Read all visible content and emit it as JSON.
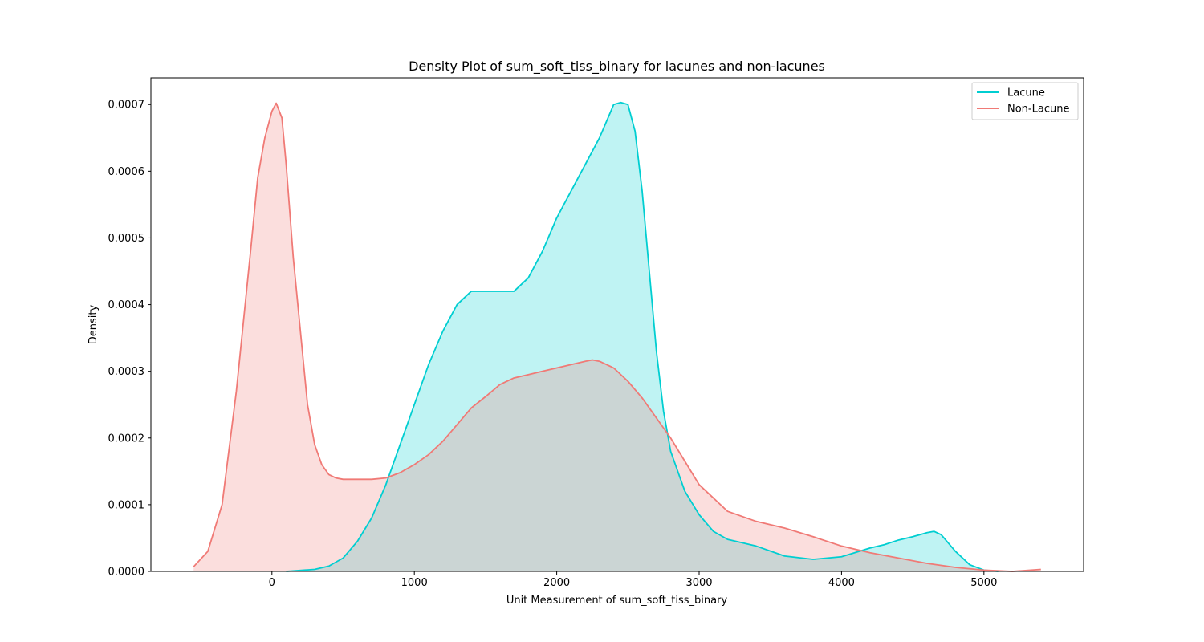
{
  "chart_data": {
    "type": "area",
    "title": "Density Plot of sum_soft_tiss_binary for lacunes and non-lacunes",
    "xlabel": "Unit Measurement of sum_soft_tiss_binary",
    "ylabel": "Density",
    "xlim": [
      -850,
      5700
    ],
    "ylim": [
      0,
      0.00074
    ],
    "xticks": [
      0,
      1000,
      2000,
      3000,
      4000,
      5000
    ],
    "xtick_labels": [
      "0",
      "1000",
      "2000",
      "3000",
      "4000",
      "5000"
    ],
    "yticks": [
      0,
      0.0001,
      0.0002,
      0.0003,
      0.0004,
      0.0005,
      0.0006,
      0.0007
    ],
    "ytick_labels": [
      "0.0000",
      "0.0001",
      "0.0002",
      "0.0003",
      "0.0004",
      "0.0005",
      "0.0006",
      "0.0007"
    ],
    "grid": false,
    "legend_position": "top-right",
    "series": [
      {
        "name": "Lacune",
        "color": "#00ced1",
        "fill_opacity": 0.25,
        "x": [
          100,
          300,
          400,
          500,
          600,
          700,
          800,
          900,
          1000,
          1100,
          1200,
          1300,
          1400,
          1500,
          1600,
          1700,
          1800,
          1900,
          2000,
          2100,
          2200,
          2300,
          2400,
          2450,
          2500,
          2550,
          2600,
          2650,
          2700,
          2750,
          2800,
          2900,
          3000,
          3100,
          3200,
          3400,
          3600,
          3800,
          4000,
          4200,
          4300,
          4400,
          4500,
          4600,
          4650,
          4700,
          4800,
          4900,
          5000,
          5100
        ],
        "y": [
          0.0,
          3e-06,
          8e-06,
          2e-05,
          4.5e-05,
          8e-05,
          0.00013,
          0.00019,
          0.00025,
          0.00031,
          0.00036,
          0.0004,
          0.00042,
          0.00042,
          0.00042,
          0.00042,
          0.00044,
          0.00048,
          0.00053,
          0.00057,
          0.00061,
          0.00065,
          0.0007,
          0.000703,
          0.0007,
          0.00066,
          0.00057,
          0.00045,
          0.00033,
          0.00024,
          0.00018,
          0.00012,
          8.5e-05,
          6e-05,
          4.8e-05,
          3.8e-05,
          2.3e-05,
          1.8e-05,
          2.2e-05,
          3.5e-05,
          4e-05,
          4.7e-05,
          5.2e-05,
          5.8e-05,
          6e-05,
          5.5e-05,
          3e-05,
          1e-05,
          2e-06,
          0.0
        ]
      },
      {
        "name": "Non-Lacune",
        "color": "#f07a76",
        "fill_opacity": 0.25,
        "x": [
          -550,
          -450,
          -350,
          -250,
          -150,
          -100,
          -50,
          0,
          30,
          70,
          100,
          150,
          200,
          250,
          300,
          350,
          400,
          450,
          500,
          550,
          600,
          700,
          800,
          900,
          1000,
          1100,
          1200,
          1300,
          1400,
          1500,
          1600,
          1700,
          1800,
          1900,
          2000,
          2100,
          2200,
          2250,
          2300,
          2400,
          2500,
          2600,
          2700,
          2800,
          2900,
          3000,
          3200,
          3400,
          3600,
          3800,
          4000,
          4200,
          4400,
          4600,
          4800,
          5000,
          5200,
          5400
        ],
        "y": [
          7e-06,
          3e-05,
          0.0001,
          0.00027,
          0.00048,
          0.00059,
          0.00065,
          0.00069,
          0.000702,
          0.00068,
          0.00061,
          0.00047,
          0.00036,
          0.00025,
          0.00019,
          0.00016,
          0.000145,
          0.00014,
          0.000138,
          0.000138,
          0.000138,
          0.000138,
          0.00014,
          0.000148,
          0.00016,
          0.000175,
          0.000195,
          0.00022,
          0.000245,
          0.000262,
          0.00028,
          0.00029,
          0.000295,
          0.0003,
          0.000305,
          0.00031,
          0.000315,
          0.000317,
          0.000315,
          0.000305,
          0.000285,
          0.00026,
          0.00023,
          0.0002,
          0.000165,
          0.00013,
          9e-05,
          7.5e-05,
          6.5e-05,
          5.2e-05,
          3.8e-05,
          2.8e-05,
          2e-05,
          1.2e-05,
          6e-06,
          2e-06,
          0.0,
          3e-06
        ]
      }
    ]
  }
}
